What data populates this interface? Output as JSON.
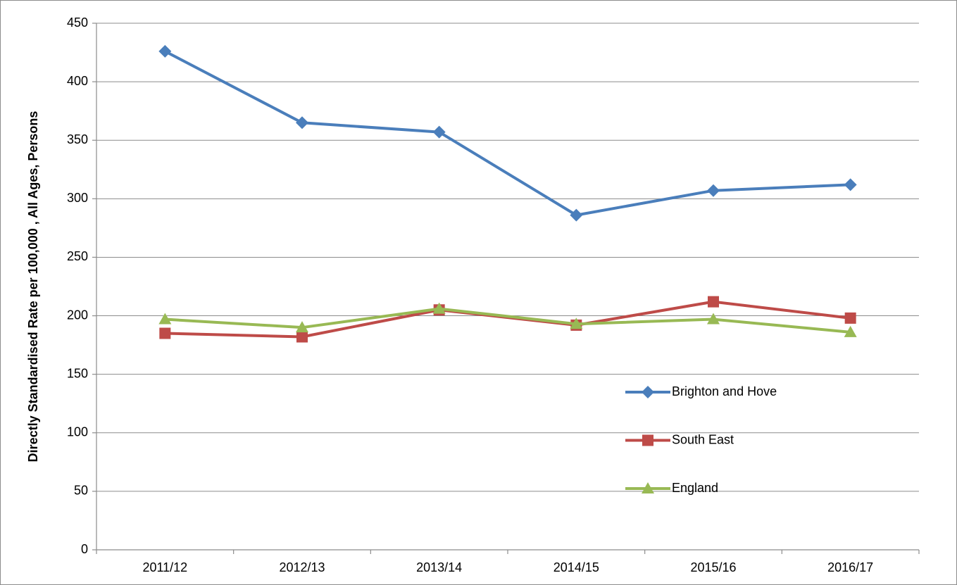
{
  "chart_data": {
    "type": "line",
    "y_label": "Directly Standardised Rate per 100,000 , All Ages, Persons",
    "categories": [
      "2011/12",
      "2012/13",
      "2013/14",
      "2014/15",
      "2015/16",
      "2016/17"
    ],
    "series": [
      {
        "name": "Brighton and Hove",
        "color": "#4a7ebb",
        "marker": "diamond",
        "values": [
          426,
          365,
          357,
          286,
          307,
          312
        ]
      },
      {
        "name": "South East",
        "color": "#be4b48",
        "marker": "square",
        "values": [
          185,
          182,
          205,
          192,
          212,
          198
        ]
      },
      {
        "name": "England",
        "color": "#98b954",
        "marker": "triangle",
        "values": [
          197,
          190,
          206,
          193,
          197,
          186
        ]
      }
    ],
    "ylim": [
      0,
      450
    ],
    "yticks": [
      0,
      50,
      100,
      150,
      200,
      250,
      300,
      350,
      400,
      450
    ],
    "grid": true,
    "legend": "right"
  }
}
